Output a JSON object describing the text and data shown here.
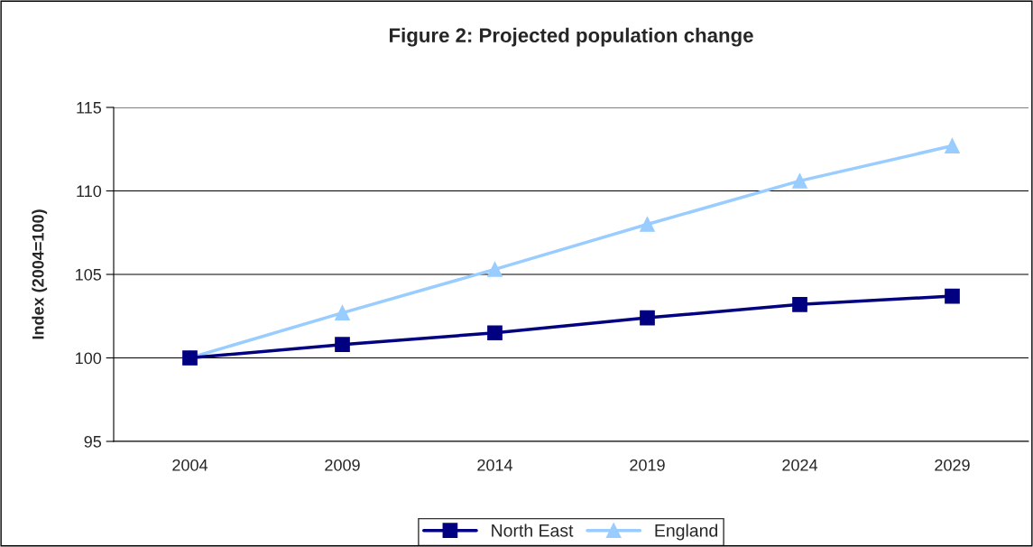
{
  "chart_data": {
    "type": "line",
    "title": "Figure 2: Projected population change",
    "ylabel": "Index (2004=100)",
    "categories": [
      "2004",
      "2009",
      "2014",
      "2019",
      "2024",
      "2029"
    ],
    "series": [
      {
        "name": "North East",
        "color": "#000080",
        "marker": "square",
        "values": [
          100,
          100.8,
          101.5,
          102.4,
          103.2,
          103.7
        ]
      },
      {
        "name": "England",
        "color": "#99ccff",
        "marker": "triangle",
        "values": [
          100,
          102.7,
          105.3,
          108.0,
          110.6,
          112.7
        ]
      }
    ],
    "ylim": [
      95,
      115
    ],
    "yticks": [
      95,
      100,
      105,
      110,
      115
    ],
    "grid": "y",
    "legend": "bottom",
    "line_style": "solid"
  }
}
